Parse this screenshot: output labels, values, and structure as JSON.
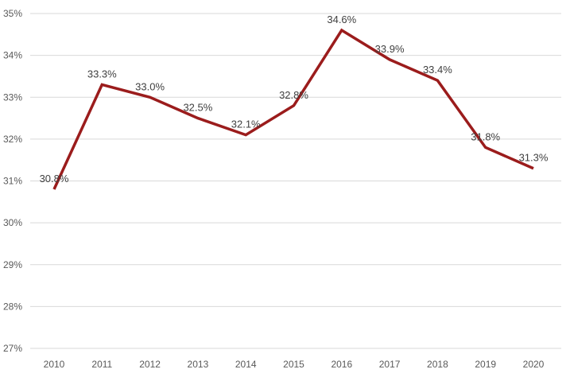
{
  "chart_data": {
    "type": "line",
    "title": "",
    "xlabel": "",
    "ylabel": "",
    "x": [
      "2010",
      "2011",
      "2012",
      "2013",
      "2014",
      "2015",
      "2016",
      "2017",
      "2018",
      "2019",
      "2020"
    ],
    "series": [
      {
        "values": [
          30.8,
          33.3,
          33.0,
          32.5,
          32.1,
          32.8,
          34.6,
          33.9,
          33.4,
          31.8,
          31.3
        ],
        "data_labels": [
          "30.8%",
          "33.3%",
          "33.0%",
          "32.5%",
          "32.1%",
          "32.8%",
          "34.6%",
          "33.9%",
          "33.4%",
          "31.8%",
          "31.3%"
        ],
        "color": "#9b1c1c"
      }
    ],
    "ylim": [
      27,
      35
    ],
    "y_ticks": [
      27,
      28,
      29,
      30,
      31,
      32,
      33,
      34,
      35
    ],
    "y_tick_labels": [
      "27%",
      "28%",
      "29%",
      "30%",
      "31%",
      "32%",
      "33%",
      "34%",
      "35%"
    ],
    "grid": true,
    "legend": "none"
  }
}
